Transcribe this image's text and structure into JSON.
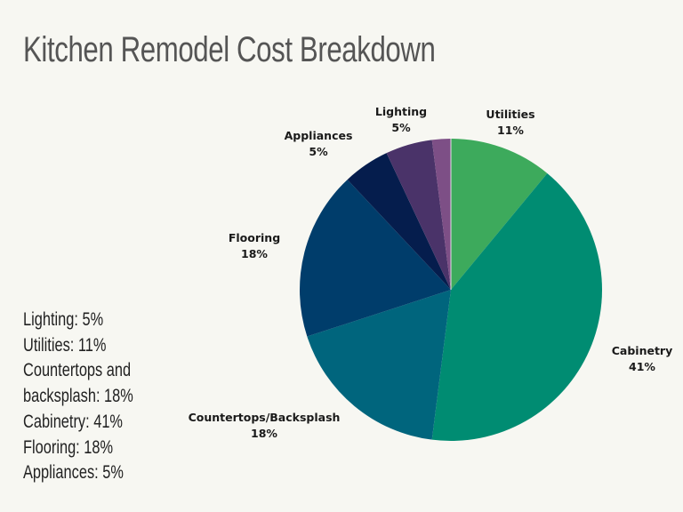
{
  "title": "Kitchen Remodel Cost Breakdown",
  "summary": [
    "Lighting: 5%",
    "Utilities: 11%",
    "Countertops and",
    "backsplash: 18%",
    "Cabinetry: 41%",
    "Flooring: 18%",
    "Appliances: 5%"
  ],
  "labels": {
    "utilities": {
      "name": "Utilities",
      "pct": "11%"
    },
    "cabinetry": {
      "name": "Cabinetry",
      "pct": "41%"
    },
    "countertops": {
      "name": "Countertops/Backsplash",
      "pct": "18%"
    },
    "flooring": {
      "name": "Flooring",
      "pct": "18%"
    },
    "appliances": {
      "name": "Appliances",
      "pct": "5%"
    },
    "lighting": {
      "name": "Lighting",
      "pct": "5%"
    }
  },
  "chart_data": {
    "type": "pie",
    "title": "Kitchen Remodel Cost Breakdown",
    "categories": [
      "Utilities",
      "Cabinetry",
      "Countertops/Backsplash",
      "Flooring",
      "Appliances",
      "Lighting",
      "Other (unlabeled)"
    ],
    "values": [
      11,
      41,
      18,
      18,
      5,
      5,
      2
    ],
    "colors": [
      "#3daa5c",
      "#008c72",
      "#00657d",
      "#003d6b",
      "#051d4d",
      "#4a3369",
      "#7d4f86"
    ],
    "start_angle": "12 o'clock, clockwise",
    "legend": "none (direct labels)",
    "center": [
      507,
      326
    ],
    "radius": 170
  }
}
